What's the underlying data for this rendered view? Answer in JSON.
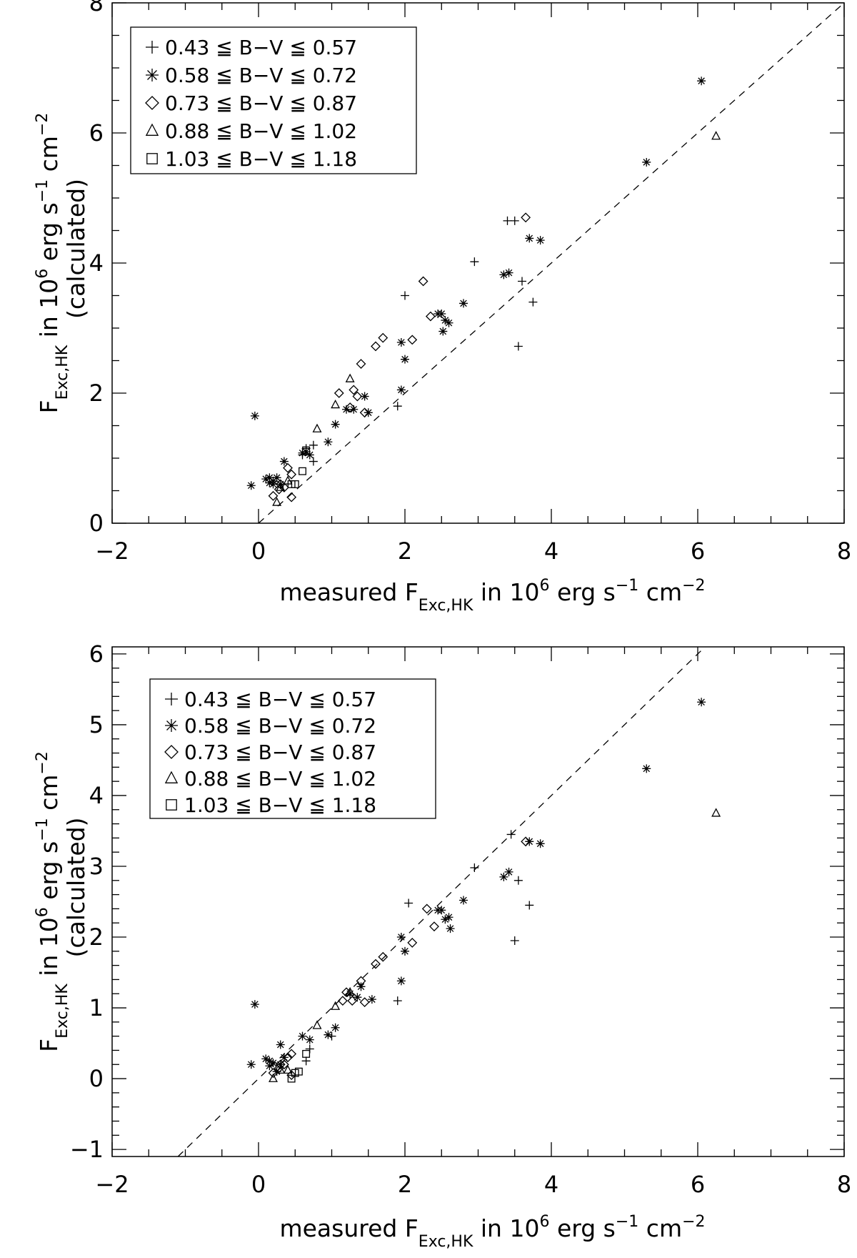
{
  "chart_data": [
    {
      "type": "scatter",
      "xlim": [
        -2,
        8
      ],
      "ylim": [
        0,
        8
      ],
      "x_ticks": [
        "-2",
        "0",
        "2",
        "4",
        "6",
        "8"
      ],
      "y_ticks": [
        "0",
        "2",
        "4",
        "6",
        "8"
      ],
      "xlabel": {
        "pre": "measured F",
        "sub": "Exc,HK",
        "mid": " in 10",
        "sup1": "6",
        "post1": " erg s",
        "sup2": "-1",
        "post2": " cm",
        "sup3": "-2"
      },
      "ylabel": {
        "main": "F",
        "sub": "Exc,HK",
        "mid": " in 10",
        "sup1": "6",
        "post1": " erg s",
        "sup2": "-1",
        "post2": " cm",
        "sup3": "-2",
        "line2": "(calculated)"
      },
      "legend_position": "top-left",
      "reference_line": {
        "style": "dashed",
        "slope": 1,
        "intercept": 0
      },
      "series": [
        {
          "name": "0.43 ≦ B−V ≦ 0.57",
          "marker": "plus",
          "points": [
            [
              3.4,
              4.65
            ],
            [
              3.5,
              4.65
            ],
            [
              2.95,
              4.02
            ],
            [
              2.0,
              3.5
            ],
            [
              3.6,
              3.72
            ],
            [
              3.75,
              3.4
            ],
            [
              3.55,
              2.72
            ],
            [
              1.9,
              1.8
            ],
            [
              0.75,
              0.95
            ],
            [
              0.6,
              1.05
            ],
            [
              0.65,
              1.15
            ],
            [
              0.75,
              1.2
            ]
          ]
        },
        {
          "name": "0.58 ≦ B−V ≦ 0.72",
          "marker": "asterisk",
          "points": [
            [
              6.05,
              6.8
            ],
            [
              5.3,
              5.55
            ],
            [
              3.7,
              4.38
            ],
            [
              3.85,
              4.35
            ],
            [
              3.35,
              3.82
            ],
            [
              3.42,
              3.85
            ],
            [
              2.8,
              3.38
            ],
            [
              2.45,
              3.22
            ],
            [
              2.5,
              3.22
            ],
            [
              2.55,
              3.12
            ],
            [
              2.6,
              3.08
            ],
            [
              2.52,
              2.95
            ],
            [
              1.95,
              2.78
            ],
            [
              2.0,
              2.52
            ],
            [
              1.95,
              2.05
            ],
            [
              1.45,
              1.95
            ],
            [
              1.2,
              1.75
            ],
            [
              1.3,
              1.75
            ],
            [
              1.5,
              1.7
            ],
            [
              1.05,
              1.52
            ],
            [
              0.95,
              1.25
            ],
            [
              0.7,
              1.05
            ],
            [
              0.6,
              1.08
            ],
            [
              0.65,
              1.1
            ],
            [
              -0.05,
              1.65
            ],
            [
              0.35,
              0.95
            ],
            [
              0.1,
              0.68
            ],
            [
              0.15,
              0.7
            ],
            [
              0.2,
              0.65
            ],
            [
              0.2,
              0.6
            ],
            [
              -0.1,
              0.58
            ],
            [
              0.3,
              0.6
            ],
            [
              0.15,
              0.62
            ],
            [
              0.25,
              0.7
            ]
          ]
        },
        {
          "name": "0.73 ≦ B−V ≦ 0.87",
          "marker": "diamond",
          "points": [
            [
              3.65,
              4.7
            ],
            [
              2.25,
              3.72
            ],
            [
              2.35,
              3.18
            ],
            [
              2.1,
              2.82
            ],
            [
              1.7,
              2.85
            ],
            [
              1.6,
              2.72
            ],
            [
              1.4,
              2.45
            ],
            [
              1.3,
              2.05
            ],
            [
              1.35,
              1.95
            ],
            [
              1.1,
              2.0
            ],
            [
              1.25,
              1.78
            ],
            [
              1.45,
              1.7
            ],
            [
              0.45,
              0.75
            ],
            [
              0.4,
              0.85
            ],
            [
              0.45,
              0.4
            ],
            [
              0.35,
              0.55
            ],
            [
              0.2,
              0.42
            ],
            [
              0.28,
              0.52
            ],
            [
              0.3,
              0.6
            ]
          ]
        },
        {
          "name": "0.88 ≦ B−V ≦ 1.02",
          "marker": "triangle",
          "points": [
            [
              6.25,
              5.95
            ],
            [
              1.25,
              2.22
            ],
            [
              1.05,
              1.82
            ],
            [
              0.8,
              1.45
            ],
            [
              0.4,
              0.65
            ],
            [
              0.3,
              0.55
            ],
            [
              0.25,
              0.32
            ]
          ]
        },
        {
          "name": "1.03 ≦ B−V ≦ 1.18",
          "marker": "square",
          "points": [
            [
              0.65,
              1.12
            ],
            [
              0.6,
              0.8
            ],
            [
              0.5,
              0.6
            ],
            [
              0.45,
              0.6
            ]
          ]
        }
      ]
    },
    {
      "type": "scatter",
      "xlim": [
        -2,
        8
      ],
      "ylim": [
        -1.1,
        6.1
      ],
      "x_ticks": [
        "-2",
        "0",
        "2",
        "4",
        "6",
        "8"
      ],
      "y_ticks": [
        "-1",
        "0",
        "1",
        "2",
        "3",
        "4",
        "5",
        "6"
      ],
      "xlabel": {
        "pre": "measured F",
        "sub": "Exc,HK",
        "mid": " in 10",
        "sup1": "6",
        "post1": " erg s",
        "sup2": "-1",
        "post2": " cm",
        "sup3": "-2"
      },
      "ylabel": {
        "main": "F",
        "sub": "Exc,HK",
        "mid": " in 10",
        "sup1": "6",
        "post1": " erg s",
        "sup2": "-1",
        "post2": " cm",
        "sup3": "-2",
        "line2": "(calculated)"
      },
      "legend_position": "top-left",
      "reference_line": {
        "style": "dashed",
        "slope": 1,
        "intercept": 0
      },
      "series": [
        {
          "name": "0.43 ≦ B−V ≦ 0.57",
          "marker": "plus",
          "points": [
            [
              3.45,
              3.45
            ],
            [
              2.95,
              2.98
            ],
            [
              2.05,
              2.48
            ],
            [
              3.55,
              2.8
            ],
            [
              3.7,
              2.45
            ],
            [
              3.5,
              1.95
            ],
            [
              1.9,
              1.1
            ],
            [
              1.0,
              0.6
            ],
            [
              0.7,
              0.42
            ],
            [
              0.65,
              0.25
            ]
          ]
        },
        {
          "name": "0.58 ≦ B−V ≦ 0.72",
          "marker": "asterisk",
          "points": [
            [
              6.05,
              5.32
            ],
            [
              5.3,
              4.38
            ],
            [
              3.7,
              3.35
            ],
            [
              3.85,
              3.32
            ],
            [
              3.35,
              2.85
            ],
            [
              3.42,
              2.92
            ],
            [
              2.8,
              2.52
            ],
            [
              2.45,
              2.38
            ],
            [
              2.5,
              2.38
            ],
            [
              2.6,
              2.28
            ],
            [
              2.62,
              2.12
            ],
            [
              2.55,
              2.25
            ],
            [
              1.95,
              2.0
            ],
            [
              2.0,
              1.8
            ],
            [
              1.95,
              1.38
            ],
            [
              1.55,
              1.12
            ],
            [
              1.35,
              1.15
            ],
            [
              1.4,
              1.3
            ],
            [
              1.25,
              1.2
            ],
            [
              1.05,
              0.72
            ],
            [
              0.95,
              0.62
            ],
            [
              0.7,
              0.55
            ],
            [
              0.6,
              0.6
            ],
            [
              -0.05,
              1.05
            ],
            [
              0.3,
              0.48
            ],
            [
              0.1,
              0.28
            ],
            [
              0.15,
              0.25
            ],
            [
              0.2,
              0.22
            ],
            [
              -0.1,
              0.2
            ],
            [
              0.3,
              0.2
            ],
            [
              0.15,
              0.18
            ],
            [
              0.25,
              0.1
            ],
            [
              0.35,
              0.3
            ]
          ]
        },
        {
          "name": "0.73 ≦ B−V ≦ 0.87",
          "marker": "diamond",
          "points": [
            [
              3.65,
              3.35
            ],
            [
              2.3,
              2.4
            ],
            [
              2.4,
              2.15
            ],
            [
              2.1,
              1.92
            ],
            [
              1.7,
              1.72
            ],
            [
              1.6,
              1.62
            ],
            [
              1.4,
              1.38
            ],
            [
              1.2,
              1.22
            ],
            [
              1.28,
              1.1
            ],
            [
              1.15,
              1.1
            ],
            [
              1.45,
              1.08
            ],
            [
              0.45,
              0.35
            ],
            [
              0.4,
              0.3
            ],
            [
              0.45,
              0.05
            ],
            [
              0.35,
              0.2
            ],
            [
              0.2,
              0.08
            ],
            [
              0.28,
              0.15
            ],
            [
              0.3,
              0.2
            ]
          ]
        },
        {
          "name": "0.88 ≦ B−V ≦ 1.02",
          "marker": "triangle",
          "points": [
            [
              6.25,
              3.75
            ],
            [
              1.25,
              1.22
            ],
            [
              1.05,
              1.02
            ],
            [
              0.8,
              0.75
            ],
            [
              0.4,
              0.12
            ],
            [
              0.3,
              0.12
            ],
            [
              0.2,
              0.0
            ]
          ]
        },
        {
          "name": "1.03 ≦ B−V ≦ 1.18",
          "marker": "square",
          "points": [
            [
              0.65,
              0.35
            ],
            [
              0.55,
              0.1
            ],
            [
              0.45,
              0.0
            ],
            [
              0.5,
              0.08
            ]
          ]
        }
      ]
    }
  ]
}
